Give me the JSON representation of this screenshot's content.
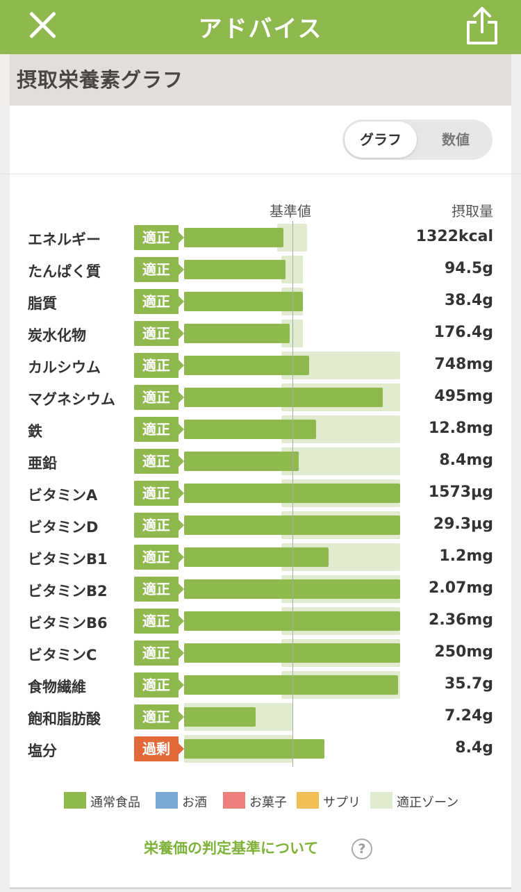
{
  "header": {
    "title": "アドバイス"
  },
  "section": {
    "title": "摂取栄養素グラフ"
  },
  "toggle": {
    "graph_label": "グラフ",
    "value_label": "数値",
    "selected": "グラフ"
  },
  "columns": {
    "standard": "基準値",
    "intake": "摂取量"
  },
  "rows": [
    {
      "name": "エネルギー",
      "status": "適正",
      "value": "1322kcal",
      "level": 0.46,
      "zone": [
        0.43,
        0.57
      ]
    },
    {
      "name": "たんぱく質",
      "status": "適正",
      "value": "94.5g",
      "level": 0.47,
      "zone": [
        0.45,
        0.55
      ]
    },
    {
      "name": "脂質",
      "status": "適正",
      "value": "38.4g",
      "level": 0.55,
      "zone": [
        0.45,
        0.55
      ]
    },
    {
      "name": "炭水化物",
      "status": "適正",
      "value": "176.4g",
      "level": 0.49,
      "zone": [
        0.45,
        0.55
      ]
    },
    {
      "name": "カルシウム",
      "status": "適正",
      "value": "748mg",
      "level": 0.58,
      "zone": [
        0.45,
        1.0
      ]
    },
    {
      "name": "マグネシウム",
      "status": "適正",
      "value": "495mg",
      "level": 0.92,
      "zone": [
        0.45,
        1.0
      ]
    },
    {
      "name": "鉄",
      "status": "適正",
      "value": "12.8mg",
      "level": 0.61,
      "zone": [
        0.45,
        1.0
      ]
    },
    {
      "name": "亜鉛",
      "status": "適正",
      "value": "8.4mg",
      "level": 0.53,
      "zone": [
        0.45,
        1.0
      ]
    },
    {
      "name": "ビタミンA",
      "status": "適正",
      "value": "1573μg",
      "level": 1.0,
      "zone": [
        0.45,
        1.0
      ]
    },
    {
      "name": "ビタミンD",
      "status": "適正",
      "value": "29.3μg",
      "level": 1.0,
      "zone": [
        0.45,
        1.0
      ]
    },
    {
      "name": "ビタミンB1",
      "status": "適正",
      "value": "1.2mg",
      "level": 0.67,
      "zone": [
        0.45,
        1.0
      ]
    },
    {
      "name": "ビタミンB2",
      "status": "適正",
      "value": "2.07mg",
      "level": 1.0,
      "zone": [
        0.45,
        1.0
      ]
    },
    {
      "name": "ビタミンB6",
      "status": "適正",
      "value": "2.36mg",
      "level": 1.0,
      "zone": [
        0.45,
        1.0
      ]
    },
    {
      "name": "ビタミンC",
      "status": "適正",
      "value": "250mg",
      "level": 1.0,
      "zone": [
        0.45,
        1.0
      ]
    },
    {
      "name": "食物繊維",
      "status": "適正",
      "value": "35.7g",
      "level": 0.99,
      "zone": [
        0.45,
        1.0
      ]
    },
    {
      "name": "飽和脂肪酸",
      "status": "適正",
      "value": "7.24g",
      "level": 0.33,
      "zone": [
        0.0,
        0.5
      ]
    },
    {
      "name": "塩分",
      "status": "過剰",
      "value": "8.4g",
      "level": 0.65,
      "zone": [
        0.0,
        0.5
      ]
    }
  ],
  "legend": [
    {
      "label": "通常食品",
      "color": "#8fb84f"
    },
    {
      "label": "お酒",
      "color": "#7aa9d6"
    },
    {
      "label": "お菓子",
      "color": "#ec7f7c"
    },
    {
      "label": "サプリ",
      "color": "#f0bf55"
    },
    {
      "label": "適正ゾーン",
      "color": "#e1ebd0"
    }
  ],
  "link": {
    "label": "栄養価の判定基準について",
    "help_icon": "?"
  },
  "colors": {
    "accent": "#8fb84f",
    "over": "#e26a3a",
    "zone": "#e1ebd0"
  },
  "icons": {
    "close": "close-icon",
    "share": "share-icon",
    "help": "question-circle-icon"
  }
}
